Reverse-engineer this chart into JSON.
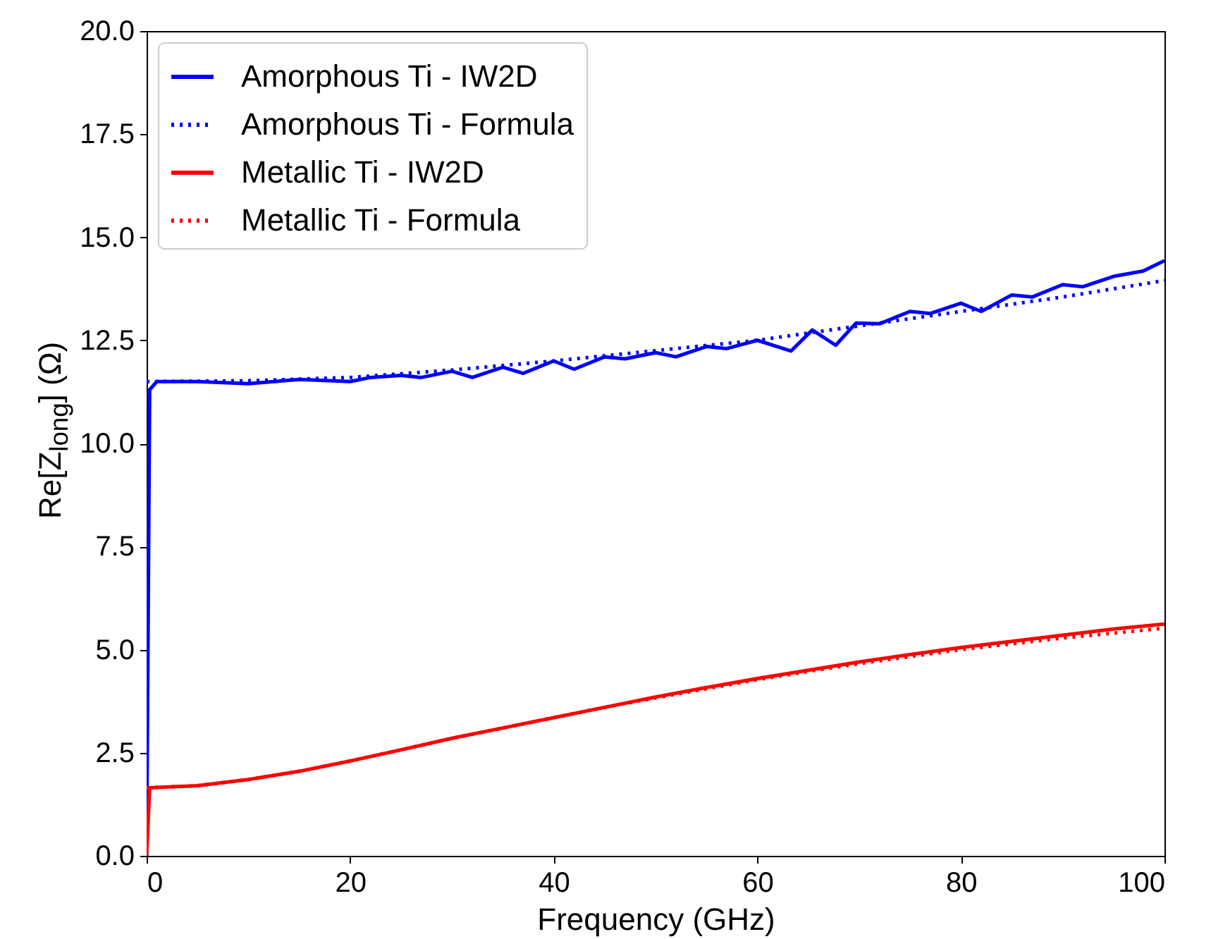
{
  "chart_data": {
    "type": "line",
    "xlabel": "Frequency (GHz)",
    "ylabel": "Re[Z$_{long}$] (Ω)",
    "xlim": [
      0,
      100
    ],
    "xticks": [
      0,
      20,
      40,
      60,
      80,
      100
    ],
    "ylim": [
      0,
      20
    ],
    "yticks": [
      {
        "value": 0,
        "label": "0.0"
      },
      {
        "value": 2.5,
        "label": "2.5"
      },
      {
        "value": 5,
        "label": "5.0"
      },
      {
        "value": 7.5,
        "label": "7.5"
      },
      {
        "value": 10,
        "label": "10.0"
      },
      {
        "value": 12.5,
        "label": "12.5"
      },
      {
        "value": 15,
        "label": "15.0"
      },
      {
        "value": 17.5,
        "label": "17.5"
      },
      {
        "value": 20,
        "label": "20.0"
      }
    ],
    "legend": "top left",
    "grid": false,
    "series": [
      {
        "name": "Amorphous Ti - IW2D",
        "color": "#0000ff",
        "line_style": "solid",
        "x": [
          0,
          0.3,
          1,
          5,
          10,
          15,
          20,
          22,
          25,
          27,
          30,
          32,
          35,
          37,
          40,
          42,
          45,
          47,
          50,
          52,
          55,
          57,
          60,
          63.3,
          65.4,
          67.7,
          69.7,
          72,
          75,
          77,
          80,
          82,
          85,
          87,
          90,
          92,
          95,
          97.9,
          100
        ],
        "values": [
          0,
          11.3,
          11.5,
          11.5,
          11.45,
          11.55,
          11.5,
          11.6,
          11.65,
          11.6,
          11.75,
          11.6,
          11.85,
          11.7,
          12.0,
          11.8,
          12.1,
          12.05,
          12.2,
          12.1,
          12.35,
          12.3,
          12.5,
          12.24,
          12.75,
          12.38,
          12.92,
          12.9,
          13.2,
          13.15,
          13.4,
          13.2,
          13.6,
          13.55,
          13.85,
          13.8,
          14.05,
          14.18,
          14.43
        ]
      },
      {
        "name": "Amorphous Ti - Formula",
        "color": "#0000ff",
        "line_style": "dotted",
        "x": [
          0,
          10,
          20,
          30,
          40,
          50,
          60,
          70,
          80,
          90,
          100
        ],
        "values": [
          11.5,
          11.52,
          11.6,
          11.78,
          12.0,
          12.25,
          12.5,
          12.85,
          13.2,
          13.55,
          13.95
        ]
      },
      {
        "name": "Metallic Ti - IW2D",
        "color": "#ff0000",
        "line_style": "solid",
        "x": [
          0,
          0.3,
          5,
          10,
          15,
          20,
          25,
          30,
          35,
          40,
          45,
          50,
          55,
          60,
          65,
          70,
          75,
          80,
          85,
          90,
          95,
          100
        ],
        "values": [
          0,
          1.65,
          1.7,
          1.85,
          2.05,
          2.3,
          2.57,
          2.85,
          3.1,
          3.35,
          3.6,
          3.85,
          4.08,
          4.3,
          4.5,
          4.7,
          4.88,
          5.05,
          5.2,
          5.35,
          5.5,
          5.62
        ]
      },
      {
        "name": "Metallic Ti - Formula",
        "color": "#ff0000",
        "line_style": "dotted",
        "x": [
          0,
          5,
          10,
          15,
          20,
          25,
          30,
          35,
          40,
          45,
          50,
          55,
          60,
          65,
          70,
          75,
          80,
          85,
          90,
          95,
          100
        ],
        "values": [
          1.65,
          1.7,
          1.85,
          2.05,
          2.3,
          2.57,
          2.85,
          3.1,
          3.35,
          3.6,
          3.83,
          4.05,
          4.27,
          4.47,
          4.66,
          4.83,
          5.0,
          5.14,
          5.28,
          5.4,
          5.52
        ]
      }
    ]
  }
}
